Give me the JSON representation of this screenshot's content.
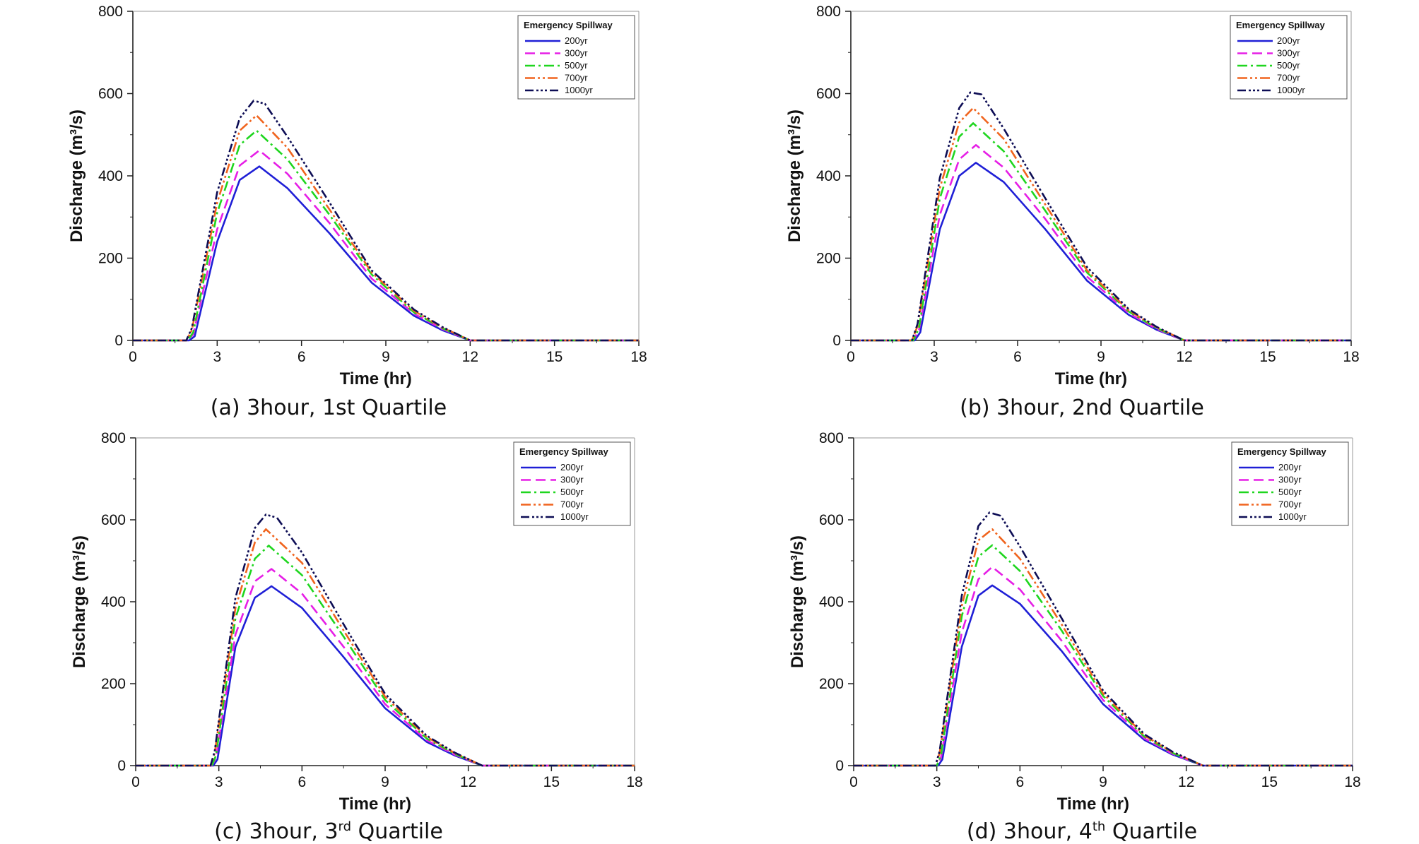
{
  "legend_title": "Emergency Spillway",
  "series_styles": [
    {
      "name": "200yr",
      "color": "#1f1fd6",
      "dash": "solid"
    },
    {
      "name": "300yr",
      "color": "#e61ee6",
      "dash": "dashed"
    },
    {
      "name": "500yr",
      "color": "#1fd61f",
      "dash": "dashdot"
    },
    {
      "name": "700yr",
      "color": "#f0641e",
      "dash": "dashdotdot"
    },
    {
      "name": "1000yr",
      "color": "#0d0d55",
      "dash": "dashdotdotdot"
    }
  ],
  "chart_data": [
    {
      "type": "line",
      "caption": "(a) 3hour, 1st Quartile",
      "xlabel": "Time (hr)",
      "ylabel": "Discharge (m³/s)",
      "xlim": [
        0,
        18
      ],
      "ylim": [
        0,
        800
      ],
      "xticks": [
        0,
        3,
        6,
        9,
        12,
        15,
        18
      ],
      "yticks": [
        0,
        200,
        400,
        600,
        800
      ],
      "legend": {
        "title": "Emergency Spillway",
        "position": "top-right"
      },
      "series": [
        {
          "name": "200yr",
          "x": [
            0,
            2.0,
            2.2,
            3.0,
            3.8,
            4.5,
            5.5,
            7.0,
            8.5,
            10.0,
            11.0,
            12.0,
            12.2,
            18
          ],
          "y": [
            0,
            0,
            10,
            240,
            390,
            423,
            370,
            260,
            140,
            60,
            25,
            0,
            0,
            0
          ]
        },
        {
          "name": "300yr",
          "x": [
            0,
            1.95,
            2.15,
            3.0,
            3.8,
            4.5,
            5.5,
            7.0,
            8.5,
            10.0,
            11.0,
            12.0,
            12.2,
            18
          ],
          "y": [
            0,
            0,
            15,
            270,
            425,
            462,
            405,
            285,
            150,
            65,
            28,
            0,
            0,
            0
          ]
        },
        {
          "name": "500yr",
          "x": [
            0,
            1.95,
            2.15,
            3.0,
            3.8,
            4.4,
            5.5,
            7.0,
            8.5,
            10.0,
            11.0,
            12.0,
            12.2,
            18
          ],
          "y": [
            0,
            0,
            20,
            310,
            475,
            510,
            440,
            305,
            160,
            68,
            30,
            0,
            0,
            0
          ]
        },
        {
          "name": "700yr",
          "x": [
            0,
            1.9,
            2.1,
            3.0,
            3.8,
            4.4,
            5.5,
            7.0,
            8.5,
            10.0,
            11.0,
            12.0,
            12.2,
            18
          ],
          "y": [
            0,
            0,
            25,
            335,
            510,
            547,
            468,
            318,
            165,
            72,
            32,
            0,
            0,
            0
          ]
        },
        {
          "name": "1000yr",
          "x": [
            0,
            1.9,
            2.1,
            3.0,
            3.8,
            4.3,
            4.7,
            5.5,
            7.0,
            8.5,
            10.0,
            11.0,
            12.0,
            12.2,
            18
          ],
          "y": [
            0,
            0,
            30,
            360,
            540,
            583,
            575,
            495,
            335,
            170,
            75,
            33,
            0,
            0,
            0
          ]
        }
      ]
    },
    {
      "type": "line",
      "caption": "(b) 3hour, 2nd Quartile",
      "xlabel": "Time (hr)",
      "ylabel": "Discharge (m³/s)",
      "xlim": [
        0,
        18
      ],
      "ylim": [
        0,
        800
      ],
      "xticks": [
        0,
        3,
        6,
        9,
        12,
        15,
        18
      ],
      "yticks": [
        0,
        200,
        400,
        600,
        800
      ],
      "legend": {
        "title": "Emergency Spillway",
        "position": "top-right"
      },
      "series": [
        {
          "name": "200yr",
          "x": [
            0,
            2.3,
            2.5,
            3.2,
            3.9,
            4.5,
            5.5,
            7.0,
            8.5,
            10.0,
            11.0,
            12.0,
            12.3,
            18
          ],
          "y": [
            0,
            0,
            20,
            270,
            400,
            432,
            385,
            270,
            145,
            62,
            26,
            0,
            0,
            0
          ]
        },
        {
          "name": "300yr",
          "x": [
            0,
            2.25,
            2.45,
            3.2,
            3.9,
            4.5,
            5.5,
            7.0,
            8.5,
            10.0,
            11.0,
            12.0,
            12.3,
            18
          ],
          "y": [
            0,
            0,
            25,
            305,
            440,
            475,
            420,
            295,
            155,
            66,
            28,
            0,
            0,
            0
          ]
        },
        {
          "name": "500yr",
          "x": [
            0,
            2.25,
            2.45,
            3.2,
            3.9,
            4.4,
            5.5,
            7.0,
            8.5,
            10.0,
            11.0,
            12.0,
            12.3,
            18
          ],
          "y": [
            0,
            0,
            30,
            345,
            495,
            528,
            460,
            315,
            165,
            70,
            30,
            0,
            0,
            0
          ]
        },
        {
          "name": "700yr",
          "x": [
            0,
            2.2,
            2.4,
            3.2,
            3.9,
            4.4,
            5.5,
            7.0,
            8.5,
            10.0,
            11.0,
            12.0,
            12.3,
            18
          ],
          "y": [
            0,
            0,
            35,
            370,
            530,
            565,
            490,
            330,
            170,
            73,
            32,
            0,
            0,
            0
          ]
        },
        {
          "name": "1000yr",
          "x": [
            0,
            2.2,
            2.4,
            3.2,
            3.9,
            4.3,
            4.7,
            5.5,
            7.0,
            8.5,
            10.0,
            11.0,
            12.0,
            12.3,
            18
          ],
          "y": [
            0,
            0,
            40,
            395,
            565,
            603,
            598,
            515,
            345,
            178,
            76,
            33,
            0,
            0,
            0
          ]
        }
      ]
    },
    {
      "type": "line",
      "caption": "(c) 3hour, 3rd Quartile",
      "caption_parts": {
        "prefix": "(c) 3hour, 3",
        "sup": "rd",
        "suffix": " Quartile"
      },
      "xlabel": "Time (hr)",
      "ylabel": "Discharge (m³/s)",
      "xlim": [
        0,
        18
      ],
      "ylim": [
        0,
        800
      ],
      "xticks": [
        0,
        3,
        6,
        9,
        12,
        15,
        18
      ],
      "yticks": [
        0,
        200,
        400,
        600,
        800
      ],
      "legend": {
        "title": "Emergency Spillway",
        "position": "top-right"
      },
      "series": [
        {
          "name": "200yr",
          "x": [
            0,
            2.8,
            2.95,
            3.6,
            4.3,
            4.9,
            6.0,
            7.5,
            9.0,
            10.5,
            11.5,
            12.5,
            12.8,
            18
          ],
          "y": [
            0,
            0,
            15,
            290,
            410,
            438,
            385,
            265,
            140,
            58,
            25,
            0,
            0,
            0
          ]
        },
        {
          "name": "300yr",
          "x": [
            0,
            2.75,
            2.9,
            3.6,
            4.3,
            4.9,
            6.0,
            7.5,
            9.0,
            10.5,
            11.5,
            12.5,
            12.8,
            18
          ],
          "y": [
            0,
            0,
            20,
            320,
            450,
            480,
            420,
            290,
            150,
            62,
            27,
            0,
            0,
            0
          ]
        },
        {
          "name": "500yr",
          "x": [
            0,
            2.75,
            2.9,
            3.6,
            4.3,
            4.8,
            6.0,
            7.5,
            9.0,
            10.5,
            11.5,
            12.5,
            12.8,
            18
          ],
          "y": [
            0,
            0,
            25,
            360,
            505,
            537,
            465,
            315,
            160,
            66,
            29,
            0,
            0,
            0
          ]
        },
        {
          "name": "700yr",
          "x": [
            0,
            2.7,
            2.85,
            3.6,
            4.3,
            4.7,
            6.0,
            7.5,
            9.0,
            10.5,
            11.5,
            12.5,
            12.8,
            18
          ],
          "y": [
            0,
            0,
            30,
            385,
            545,
            577,
            495,
            330,
            168,
            70,
            31,
            0,
            0,
            0
          ]
        },
        {
          "name": "1000yr",
          "x": [
            0,
            2.7,
            2.85,
            3.6,
            4.3,
            4.7,
            5.1,
            6.0,
            7.5,
            9.0,
            10.5,
            11.5,
            12.5,
            12.8,
            18
          ],
          "y": [
            0,
            0,
            35,
            410,
            580,
            613,
            605,
            520,
            345,
            175,
            73,
            32,
            0,
            0,
            0
          ]
        }
      ]
    },
    {
      "type": "line",
      "caption": "(d) 3hour, 4th Quartile",
      "caption_parts": {
        "prefix": "(d) 3hour, 4",
        "sup": "th",
        "suffix": " Quartile"
      },
      "xlabel": "Time (hr)",
      "ylabel": "Discharge (m³/s)",
      "xlim": [
        0,
        18
      ],
      "ylim": [
        0,
        800
      ],
      "xticks": [
        0,
        3,
        6,
        9,
        12,
        15,
        18
      ],
      "yticks": [
        0,
        200,
        400,
        600,
        800
      ],
      "legend": {
        "title": "Emergency Spillway",
        "position": "top-right"
      },
      "series": [
        {
          "name": "200yr",
          "x": [
            0,
            3.05,
            3.2,
            3.9,
            4.5,
            5.0,
            6.0,
            7.5,
            9.0,
            10.5,
            11.5,
            12.6,
            13.0,
            18
          ],
          "y": [
            0,
            0,
            15,
            290,
            415,
            440,
            395,
            280,
            150,
            62,
            27,
            0,
            0,
            0
          ]
        },
        {
          "name": "300yr",
          "x": [
            0,
            3.0,
            3.15,
            3.9,
            4.5,
            5.0,
            6.0,
            7.5,
            9.0,
            10.5,
            11.5,
            12.6,
            13.0,
            18
          ],
          "y": [
            0,
            0,
            20,
            325,
            455,
            485,
            430,
            305,
            160,
            66,
            29,
            0,
            0,
            0
          ]
        },
        {
          "name": "500yr",
          "x": [
            0,
            3.0,
            3.15,
            3.9,
            4.5,
            5.0,
            6.0,
            7.5,
            9.0,
            10.5,
            11.5,
            12.6,
            13.0,
            18
          ],
          "y": [
            0,
            0,
            25,
            365,
            510,
            538,
            475,
            330,
            170,
            70,
            31,
            0,
            0,
            0
          ]
        },
        {
          "name": "700yr",
          "x": [
            0,
            2.95,
            3.1,
            3.9,
            4.5,
            5.0,
            6.0,
            7.5,
            9.0,
            10.5,
            11.5,
            12.6,
            13.0,
            18
          ],
          "y": [
            0,
            0,
            30,
            390,
            550,
            577,
            505,
            345,
            176,
            73,
            33,
            0,
            0,
            0
          ]
        },
        {
          "name": "1000yr",
          "x": [
            0,
            2.95,
            3.1,
            3.9,
            4.5,
            4.9,
            5.3,
            6.0,
            7.5,
            9.0,
            10.5,
            11.5,
            12.6,
            13.0,
            18
          ],
          "y": [
            0,
            0,
            35,
            415,
            585,
            618,
            610,
            535,
            360,
            183,
            76,
            34,
            0,
            0,
            0
          ]
        }
      ]
    }
  ]
}
